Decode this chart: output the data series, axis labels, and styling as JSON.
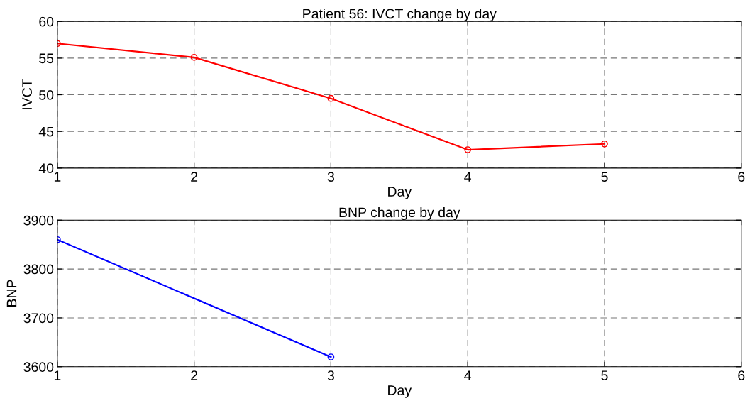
{
  "chart_data": [
    {
      "type": "line",
      "title": "Patient 56: IVCT change by day",
      "xlabel": "Day",
      "ylabel": "IVCT",
      "x": [
        1,
        2,
        3,
        4,
        5
      ],
      "series": [
        {
          "color": "#ff0000",
          "values": [
            57,
            55.1,
            49.5,
            42.5,
            43.3
          ]
        }
      ],
      "xlim": [
        1,
        6
      ],
      "xticks": [
        1,
        2,
        3,
        4,
        5,
        6
      ],
      "ylim": [
        40,
        60
      ],
      "yticks": [
        40,
        45,
        50,
        55,
        60
      ],
      "grid": true,
      "marker": "circle",
      "line_style": "solid"
    },
    {
      "type": "line",
      "title": "BNP change by day",
      "xlabel": "Day",
      "ylabel": "BNP",
      "x": [
        1,
        3
      ],
      "series": [
        {
          "color": "#0000ff",
          "values": [
            3860,
            3620
          ]
        }
      ],
      "xlim": [
        1,
        6
      ],
      "xticks": [
        1,
        2,
        3,
        4,
        5,
        6
      ],
      "ylim": [
        3600,
        3900
      ],
      "yticks": [
        3600,
        3700,
        3800,
        3900
      ],
      "grid": true,
      "marker": "circle",
      "line_style": "solid"
    }
  ]
}
